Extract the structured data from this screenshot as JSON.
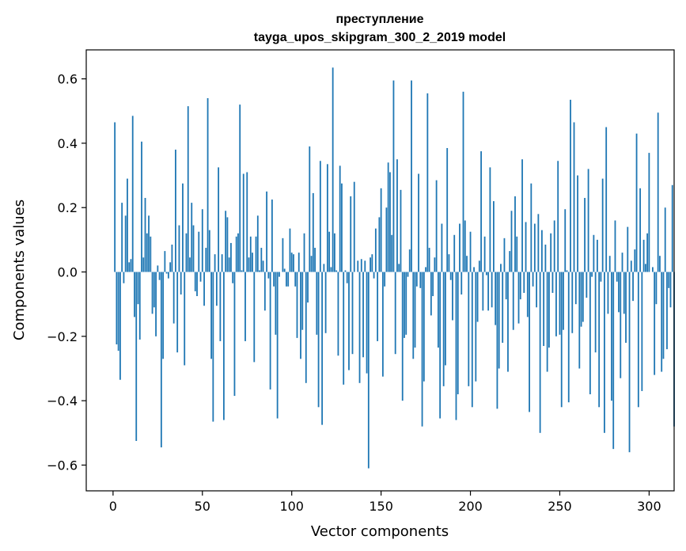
{
  "chart_data": {
    "type": "bar",
    "title": "преступление",
    "subtitle": "tayga_upos_skipgram_300_2_2019 model",
    "xlabel": "Vector components",
    "ylabel": "Components values",
    "xlim": [
      -15,
      314
    ],
    "ylim": [
      -0.68,
      0.69
    ],
    "xticks": [
      0,
      50,
      100,
      150,
      200,
      250,
      300
    ],
    "yticks": [
      -0.6,
      -0.4,
      -0.2,
      0.0,
      0.2,
      0.4,
      0.6
    ],
    "ytick_labels": [
      "−0.6",
      "−0.4",
      "−0.2",
      "0.0",
      "0.2",
      "0.4",
      "0.6"
    ],
    "bar_color": "#1f77b4",
    "grid": false,
    "legend": "none",
    "values": [
      0.0,
      0.465,
      -0.225,
      -0.245,
      -0.335,
      0.215,
      -0.035,
      0.175,
      0.29,
      0.03,
      0.04,
      0.485,
      -0.14,
      -0.525,
      -0.1,
      -0.21,
      0.405,
      0.045,
      0.23,
      0.12,
      0.175,
      0.11,
      -0.13,
      -0.11,
      -0.2,
      0.02,
      -0.025,
      -0.545,
      -0.27,
      0.065,
      -0.005,
      -0.02,
      0.03,
      0.085,
      -0.16,
      0.38,
      -0.25,
      0.145,
      -0.07,
      0.275,
      -0.29,
      0.12,
      0.515,
      0.045,
      0.215,
      0.145,
      -0.06,
      -0.075,
      0.125,
      -0.03,
      0.195,
      -0.105,
      0.075,
      0.54,
      0.13,
      -0.27,
      -0.465,
      0.055,
      -0.105,
      0.325,
      -0.215,
      0.055,
      -0.46,
      0.19,
      0.17,
      0.045,
      0.09,
      -0.035,
      -0.385,
      0.11,
      0.12,
      0.52,
      0.005,
      0.305,
      -0.215,
      0.31,
      0.045,
      0.11,
      0.06,
      -0.28,
      0.11,
      0.175,
      0.005,
      0.075,
      0.035,
      -0.12,
      0.25,
      -0.02,
      -0.365,
      0.225,
      -0.045,
      -0.195,
      -0.455,
      -0.015,
      0.0,
      0.105,
      0.01,
      -0.045,
      -0.045,
      0.135,
      0.06,
      0.055,
      -0.045,
      -0.205,
      0.06,
      -0.27,
      -0.18,
      0.12,
      -0.345,
      -0.095,
      0.39,
      0.05,
      0.245,
      0.075,
      -0.195,
      -0.42,
      0.345,
      -0.475,
      0.025,
      -0.19,
      0.335,
      0.125,
      0.015,
      0.635,
      0.12,
      0.005,
      -0.26,
      0.33,
      0.275,
      -0.35,
      0.005,
      -0.035,
      -0.305,
      0.235,
      -0.255,
      0.28,
      0.0,
      0.035,
      -0.345,
      0.04,
      -0.265,
      0.035,
      -0.315,
      -0.61,
      0.045,
      0.055,
      -0.02,
      0.135,
      -0.215,
      0.17,
      0.26,
      -0.325,
      -0.045,
      0.2,
      0.34,
      0.31,
      0.115,
      0.595,
      -0.255,
      0.35,
      0.025,
      0.255,
      -0.4,
      -0.205,
      -0.195,
      -0.015,
      0.07,
      0.595,
      -0.27,
      -0.235,
      -0.045,
      0.305,
      -0.05,
      -0.48,
      -0.34,
      0.015,
      0.555,
      0.075,
      -0.135,
      -0.075,
      0.045,
      0.285,
      -0.235,
      -0.455,
      0.15,
      -0.355,
      -0.29,
      0.385,
      0.055,
      -0.025,
      -0.15,
      0.115,
      -0.46,
      -0.38,
      0.15,
      -0.07,
      0.56,
      0.16,
      0.05,
      -0.355,
      0.125,
      -0.42,
      0.015,
      -0.34,
      -0.155,
      0.035,
      0.375,
      -0.12,
      0.11,
      -0.01,
      -0.12,
      0.325,
      -0.11,
      0.22,
      -0.165,
      -0.425,
      -0.3,
      0.025,
      -0.22,
      0.105,
      -0.085,
      -0.31,
      0.065,
      0.19,
      -0.18,
      0.235,
      0.11,
      -0.16,
      -0.085,
      0.35,
      -0.065,
      0.155,
      -0.14,
      -0.435,
      0.275,
      -0.045,
      0.15,
      -0.11,
      0.18,
      -0.5,
      0.13,
      -0.23,
      0.085,
      -0.31,
      -0.235,
      0.12,
      -0.065,
      0.16,
      -0.2,
      0.345,
      -0.195,
      -0.42,
      -0.18,
      0.195,
      0.005,
      -0.405,
      0.535,
      -0.19,
      0.465,
      -0.1,
      0.3,
      -0.3,
      -0.17,
      -0.155,
      0.23,
      -0.08,
      0.32,
      -0.38,
      -0.015,
      0.115,
      -0.25,
      0.1,
      -0.42,
      -0.03,
      0.29,
      -0.5,
      0.45,
      -0.13,
      0.05,
      -0.4,
      -0.55,
      0.16,
      -0.03,
      -0.125,
      -0.33,
      0.06,
      -0.13,
      -0.22,
      0.14,
      -0.56,
      0.035,
      -0.09,
      0.07,
      0.43,
      -0.42,
      0.26,
      -0.37,
      0.1,
      0.025,
      0.12,
      0.37,
      0.0,
      0.015,
      -0.32,
      -0.1,
      0.495,
      0.05,
      -0.31,
      -0.27,
      0.2,
      -0.24,
      -0.05,
      -0.11,
      0.27,
      -0.48
    ]
  }
}
